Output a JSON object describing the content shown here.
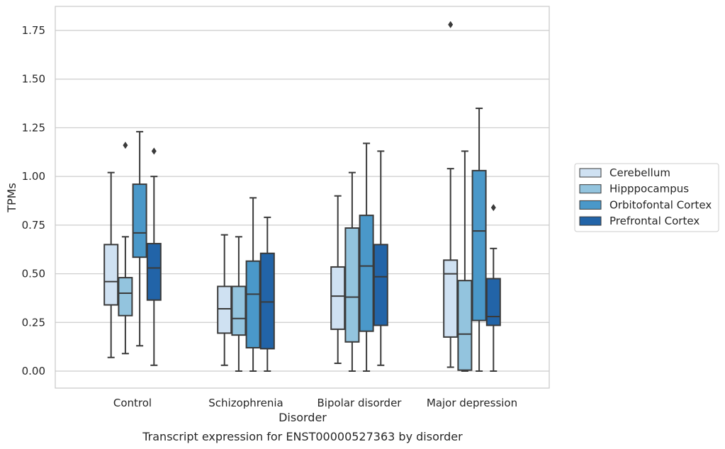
{
  "chart_data": {
    "type": "box",
    "xlabel": "Disorder",
    "ylabel": "TPMs",
    "caption": "Transcript expression for ENST00000527363 by disorder",
    "categories": [
      "Control",
      "Schizophrenia",
      "Bipolar disorder",
      "Major depression"
    ],
    "yticks": [
      "0.00",
      "0.25",
      "0.50",
      "0.75",
      "1.00",
      "1.25",
      "1.50",
      "1.75"
    ],
    "ylim": [
      -0.085,
      1.875
    ],
    "grid": true,
    "legend_position": "right",
    "series": [
      {
        "name": "Cerebellum",
        "color": "#cfe1f2",
        "boxes": [
          {
            "min": 0.07,
            "q1": 0.34,
            "median": 0.46,
            "q3": 0.65,
            "max": 1.02,
            "outliers": []
          },
          {
            "min": 0.03,
            "q1": 0.195,
            "median": 0.32,
            "q3": 0.435,
            "max": 0.7,
            "outliers": []
          },
          {
            "min": 0.04,
            "q1": 0.215,
            "median": 0.385,
            "q3": 0.535,
            "max": 0.9,
            "outliers": []
          },
          {
            "min": 0.02,
            "q1": 0.175,
            "median": 0.5,
            "q3": 0.57,
            "max": 1.04,
            "outliers": [
              1.78
            ]
          }
        ]
      },
      {
        "name": "Hipppocampus",
        "color": "#93c4de",
        "boxes": [
          {
            "min": 0.09,
            "q1": 0.285,
            "median": 0.4,
            "q3": 0.48,
            "max": 0.69,
            "outliers": [
              1.16
            ]
          },
          {
            "min": 0.0,
            "q1": 0.185,
            "median": 0.27,
            "q3": 0.435,
            "max": 0.69,
            "outliers": []
          },
          {
            "min": 0.0,
            "q1": 0.15,
            "median": 0.38,
            "q3": 0.735,
            "max": 1.02,
            "outliers": []
          },
          {
            "min": 0.0,
            "q1": 0.005,
            "median": 0.19,
            "q3": 0.465,
            "max": 1.13,
            "outliers": []
          }
        ]
      },
      {
        "name": "Orbitofontal Cortex",
        "color": "#4a98c9",
        "boxes": [
          {
            "min": 0.13,
            "q1": 0.585,
            "median": 0.71,
            "q3": 0.96,
            "max": 1.23,
            "outliers": []
          },
          {
            "min": 0.0,
            "q1": 0.12,
            "median": 0.395,
            "q3": 0.565,
            "max": 0.89,
            "outliers": []
          },
          {
            "min": 0.0,
            "q1": 0.205,
            "median": 0.54,
            "q3": 0.8,
            "max": 1.17,
            "outliers": []
          },
          {
            "min": 0.0,
            "q1": 0.26,
            "median": 0.72,
            "q3": 1.03,
            "max": 1.35,
            "outliers": []
          }
        ]
      },
      {
        "name": "Prefrontal Cortex",
        "color": "#2264a8",
        "boxes": [
          {
            "min": 0.03,
            "q1": 0.365,
            "median": 0.53,
            "q3": 0.655,
            "max": 1.0,
            "outliers": [
              1.13
            ]
          },
          {
            "min": 0.0,
            "q1": 0.115,
            "median": 0.355,
            "q3": 0.605,
            "max": 0.79,
            "outliers": []
          },
          {
            "min": 0.03,
            "q1": 0.235,
            "median": 0.485,
            "q3": 0.65,
            "max": 1.13,
            "outliers": []
          },
          {
            "min": 0.0,
            "q1": 0.235,
            "median": 0.28,
            "q3": 0.475,
            "max": 0.63,
            "outliers": [
              0.84
            ]
          }
        ]
      }
    ]
  }
}
